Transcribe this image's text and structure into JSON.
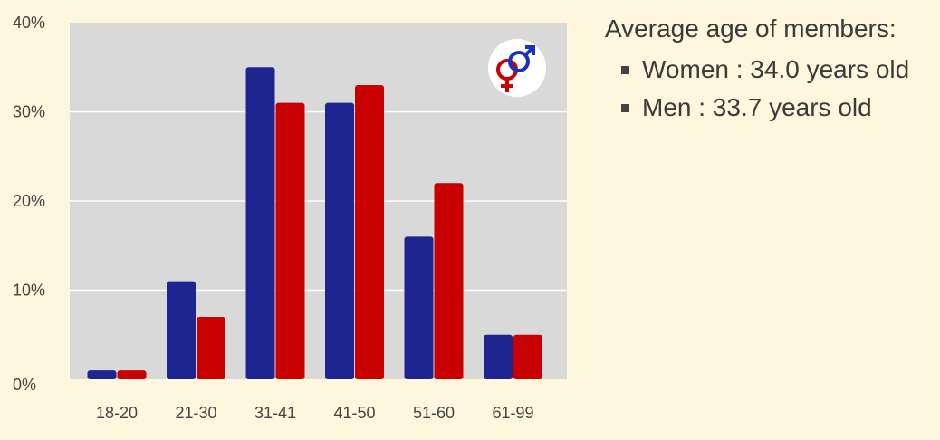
{
  "chart_data": {
    "type": "bar",
    "categories": [
      "18-20",
      "21-30",
      "31-41",
      "41-50",
      "51-60",
      "61-99"
    ],
    "series": [
      {
        "values": [
          1,
          11,
          35,
          31,
          16,
          5
        ],
        "color": "#1f2590"
      },
      {
        "values": [
          1,
          7,
          31,
          33,
          22,
          5
        ],
        "color": "#c90000"
      }
    ],
    "ylim": [
      0,
      40
    ],
    "yticks": [
      "0%",
      "10%",
      "20%",
      "30%",
      "40%"
    ],
    "grid": true,
    "plot_background": "#d9d9d9",
    "gender_icon": "gender-symbols-icon"
  },
  "stats": {
    "title": "Average age of members:",
    "items": [
      {
        "label": "Women : 34.0 years old"
      },
      {
        "label": "Men : 33.7 years old"
      }
    ]
  }
}
